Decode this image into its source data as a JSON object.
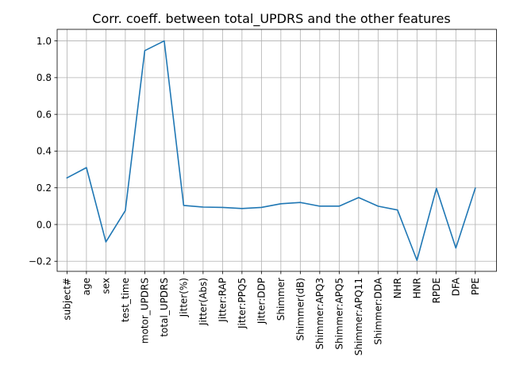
{
  "chart_data": {
    "type": "line",
    "title": "Corr. coeff. between total_UPDRS and the other features",
    "xlabel": "",
    "ylabel": "",
    "grid": true,
    "legend": "none",
    "line_color": "#1f77b4",
    "ylim": [
      -0.255,
      1.063
    ],
    "yticks": [
      -0.2,
      0.0,
      0.2,
      0.4,
      0.6,
      0.8,
      1.0
    ],
    "ytick_labels": [
      "−0.2",
      "0.0",
      "0.2",
      "0.4",
      "0.6",
      "0.8",
      "1.0"
    ],
    "categories": [
      "subject#",
      "age",
      "sex",
      "test_time",
      "motor_UPDRS",
      "total_UPDRS",
      "Jitter(%)",
      "Jitter(Abs)",
      "Jitter:RAP",
      "Jitter:PPQ5",
      "Jitter:DDP",
      "Shimmer",
      "Shimmer(dB)",
      "Shimmer:APQ3",
      "Shimmer:APQ5",
      "Shimmer:APQ11",
      "Shimmer:DDA",
      "NHR",
      "HNR",
      "RPDE",
      "DFA",
      "PPE"
    ],
    "values": [
      0.254,
      0.31,
      -0.095,
      0.076,
      0.947,
      1.0,
      0.104,
      0.095,
      0.093,
      0.087,
      0.093,
      0.113,
      0.12,
      0.1,
      0.1,
      0.147,
      0.1,
      0.079,
      -0.195,
      0.197,
      -0.128,
      0.198
    ]
  }
}
